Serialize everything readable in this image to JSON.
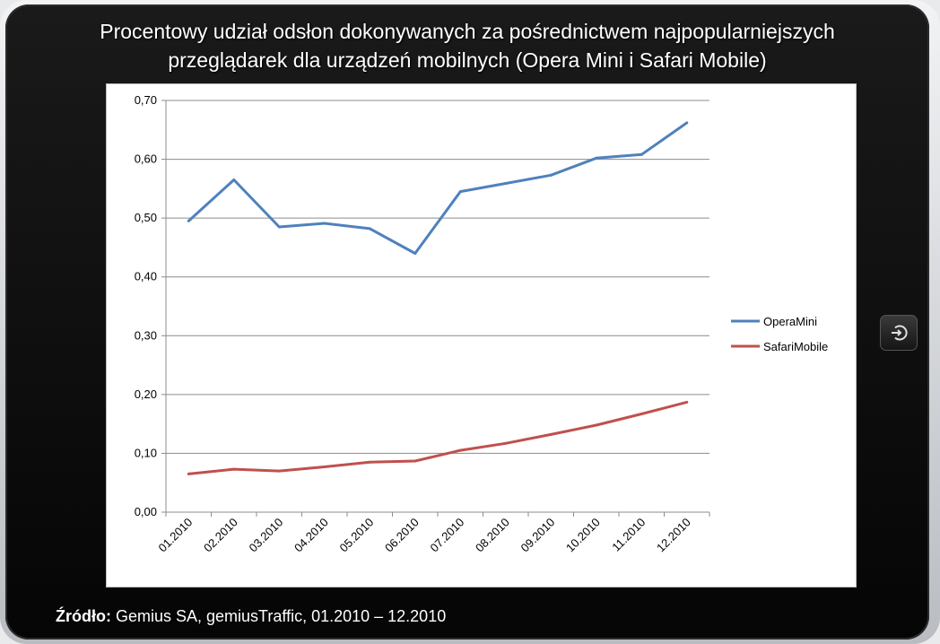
{
  "title_line1": "Procentowy udział odsłon dokonywanych za pośrednictwem  najpopularniejszych",
  "title_line2": "przeglądarek dla urządzeń mobilnych (Opera Mini i Safari Mobile)",
  "source": {
    "label": "Źródło:",
    "text": "Gemius SA, gemiusTraffic, 01.2010 – 12.2010"
  },
  "icons": {
    "home_button": "power-return-icon"
  },
  "chart_data": {
    "type": "line",
    "title": "",
    "xlabel": "",
    "ylabel": "",
    "ylim": [
      0,
      0.7
    ],
    "grid": true,
    "legend_position": "right",
    "categories": [
      "01.2010",
      "02.2010",
      "03.2010",
      "04.2010",
      "05.2010",
      "06.2010",
      "07.2010",
      "08.2010",
      "09.2010",
      "10.2010",
      "11.2010",
      "12.2010"
    ],
    "y_ticks": [
      "0,00",
      "0,10",
      "0,20",
      "0,30",
      "0,40",
      "0,50",
      "0,60",
      "0,70"
    ],
    "series": [
      {
        "name": "OperaMini",
        "color": "#4f81bd",
        "values": [
          0.495,
          0.565,
          0.485,
          0.491,
          0.482,
          0.44,
          0.545,
          0.559,
          0.573,
          0.602,
          0.608,
          0.662
        ]
      },
      {
        "name": "SafariMobile",
        "color": "#c0504d",
        "values": [
          0.065,
          0.073,
          0.07,
          0.077,
          0.085,
          0.087,
          0.105,
          0.117,
          0.132,
          0.148,
          0.167,
          0.187
        ]
      }
    ]
  }
}
